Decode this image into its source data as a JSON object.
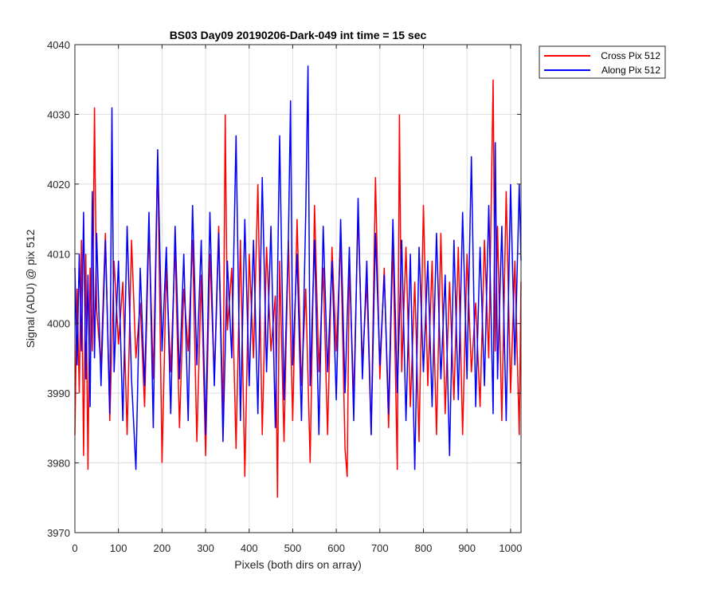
{
  "chart_data": {
    "type": "line",
    "title": "BS03 Day09 20190206-Dark-049 int time = 15 sec",
    "xlabel": "Pixels (both dirs on array)",
    "ylabel": "Signal (ADU) @ pix 512",
    "xlim": [
      0,
      1024
    ],
    "ylim": [
      3970,
      4040
    ],
    "xticks": [
      "0",
      "100",
      "200",
      "300",
      "400",
      "500",
      "600",
      "700",
      "800",
      "900",
      "1000"
    ],
    "yticks": [
      "3970",
      "3980",
      "3990",
      "4000",
      "4010",
      "4020",
      "4030",
      "4040"
    ],
    "grid": true,
    "legend_position": "outside top-right",
    "series": [
      {
        "name": "Cross Pix 512",
        "color": "#ff0000",
        "x": [
          0,
          5,
          10,
          15,
          20,
          25,
          30,
          35,
          40,
          45,
          50,
          60,
          70,
          80,
          90,
          100,
          110,
          120,
          130,
          140,
          150,
          160,
          170,
          180,
          190,
          200,
          210,
          220,
          230,
          240,
          250,
          260,
          270,
          280,
          290,
          300,
          310,
          320,
          330,
          340,
          345,
          350,
          360,
          370,
          380,
          390,
          400,
          410,
          420,
          430,
          440,
          450,
          460,
          465,
          470,
          480,
          490,
          500,
          510,
          520,
          530,
          540,
          550,
          560,
          570,
          580,
          590,
          600,
          610,
          620,
          625,
          630,
          640,
          650,
          660,
          670,
          680,
          690,
          700,
          710,
          720,
          730,
          740,
          745,
          750,
          760,
          770,
          780,
          790,
          800,
          810,
          820,
          830,
          840,
          850,
          860,
          870,
          880,
          890,
          900,
          910,
          920,
          930,
          940,
          950,
          960,
          965,
          970,
          980,
          990,
          1000,
          1010,
          1020,
          1024
        ],
        "values": [
          3984,
          4005,
          3990,
          4012,
          3981,
          4010,
          3979,
          4008,
          3996,
          4031,
          4002,
          3994,
          4013,
          3986,
          4009,
          3997,
          4006,
          3984,
          4012,
          3995,
          4003,
          3988,
          4014,
          3992,
          4024,
          3980,
          4008,
          3993,
          4011,
          3985,
          4005,
          3996,
          4012,
          3983,
          4007,
          3981,
          4010,
          3992,
          4014,
          3986,
          4030,
          3999,
          4008,
          3982,
          4012,
          3978,
          4010,
          3995,
          4020,
          3984,
          4011,
          3996,
          4004,
          3975,
          4009,
          3983,
          4012,
          3986,
          4015,
          3991,
          4005,
          3980,
          4017,
          3993,
          4008,
          3984,
          4011,
          3996,
          4012,
          3982,
          3978,
          4009,
          3989,
          4016,
          3994,
          4006,
          3984,
          4021,
          3992,
          4008,
          3985,
          4012,
          3979,
          4030,
          3993,
          4011,
          3988,
          4006,
          3983,
          4017,
          3991,
          4009,
          3984,
          4013,
          3987,
          4006,
          3989,
          4011,
          3984,
          4010,
          3993,
          4003,
          3988,
          4012,
          3995,
          4035,
          3996,
          4014,
          3986,
          4019,
          3990,
          4009,
          3984,
          4006
        ]
      },
      {
        "name": "Along Pix 512",
        "color": "#0000ff",
        "x": [
          0,
          5,
          10,
          15,
          20,
          25,
          30,
          35,
          40,
          45,
          50,
          60,
          70,
          80,
          85,
          90,
          100,
          110,
          120,
          130,
          140,
          150,
          160,
          170,
          180,
          190,
          200,
          210,
          220,
          230,
          240,
          250,
          260,
          270,
          280,
          290,
          300,
          310,
          320,
          330,
          340,
          350,
          360,
          370,
          380,
          390,
          400,
          410,
          420,
          430,
          440,
          450,
          460,
          470,
          480,
          490,
          495,
          500,
          510,
          520,
          530,
          535,
          540,
          550,
          560,
          570,
          580,
          590,
          600,
          610,
          620,
          630,
          640,
          650,
          660,
          670,
          680,
          690,
          700,
          710,
          720,
          730,
          740,
          750,
          760,
          770,
          780,
          790,
          800,
          810,
          820,
          830,
          840,
          850,
          860,
          870,
          880,
          890,
          900,
          910,
          920,
          930,
          940,
          950,
          960,
          965,
          970,
          980,
          990,
          1000,
          1010,
          1020,
          1024
        ],
        "values": [
          4008,
          3994,
          4010,
          3996,
          4016,
          3992,
          4007,
          3988,
          4019,
          3995,
          4013,
          3991,
          4012,
          3987,
          4031,
          3993,
          4009,
          3986,
          4014,
          3992,
          3979,
          4008,
          3991,
          4016,
          3985,
          4025,
          3996,
          4011,
          3987,
          4014,
          3992,
          4010,
          3986,
          4017,
          3994,
          4012,
          3984,
          4016,
          3991,
          4013,
          3983,
          4009,
          3995,
          4027,
          3986,
          4015,
          3991,
          4012,
          3987,
          4021,
          3993,
          4014,
          3985,
          4027,
          3989,
          4012,
          4032,
          3994,
          4010,
          3986,
          4016,
          4037,
          3991,
          4012,
          3984,
          4014,
          3993,
          4009,
          3989,
          4015,
          3990,
          4011,
          3986,
          4018,
          3992,
          4009,
          3984,
          4013,
          3994,
          4007,
          3987,
          4015,
          3990,
          4012,
          3986,
          4010,
          3979,
          4011,
          3993,
          4009,
          3988,
          4013,
          3992,
          4007,
          3981,
          4012,
          3989,
          4016,
          3992,
          4024,
          3988,
          4011,
          3991,
          4017,
          3987,
          4026,
          3992,
          4014,
          3986,
          4020,
          3994,
          4020,
          4009
        ]
      }
    ]
  }
}
